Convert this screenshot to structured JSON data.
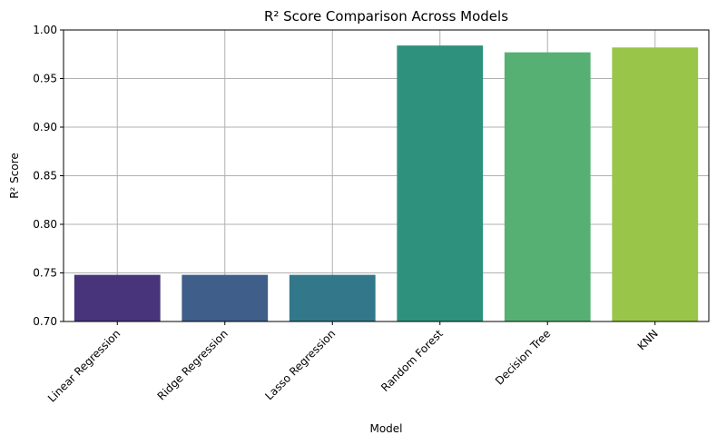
{
  "chart_data": {
    "type": "bar",
    "title": "R² Score Comparison Across Models",
    "xlabel": "Model",
    "ylabel": "R² Score",
    "categories": [
      "Linear Regression",
      "Ridge Regression",
      "Lasso Regression",
      "Random Forest",
      "Decision Tree",
      "KNN"
    ],
    "values": [
      0.748,
      0.748,
      0.748,
      0.984,
      0.977,
      0.982
    ],
    "colors": [
      "#48347a",
      "#3f5e8a",
      "#32788a",
      "#2e917e",
      "#57b073",
      "#99c649"
    ],
    "ylim": [
      0.7,
      1.0
    ],
    "yticks": [
      0.7,
      0.75,
      0.8,
      0.85,
      0.9,
      0.95,
      1.0
    ],
    "ytick_labels": [
      "0.70",
      "0.75",
      "0.80",
      "0.85",
      "0.90",
      "0.95",
      "1.00"
    ],
    "grid": true,
    "xtick_rotation": 45
  }
}
